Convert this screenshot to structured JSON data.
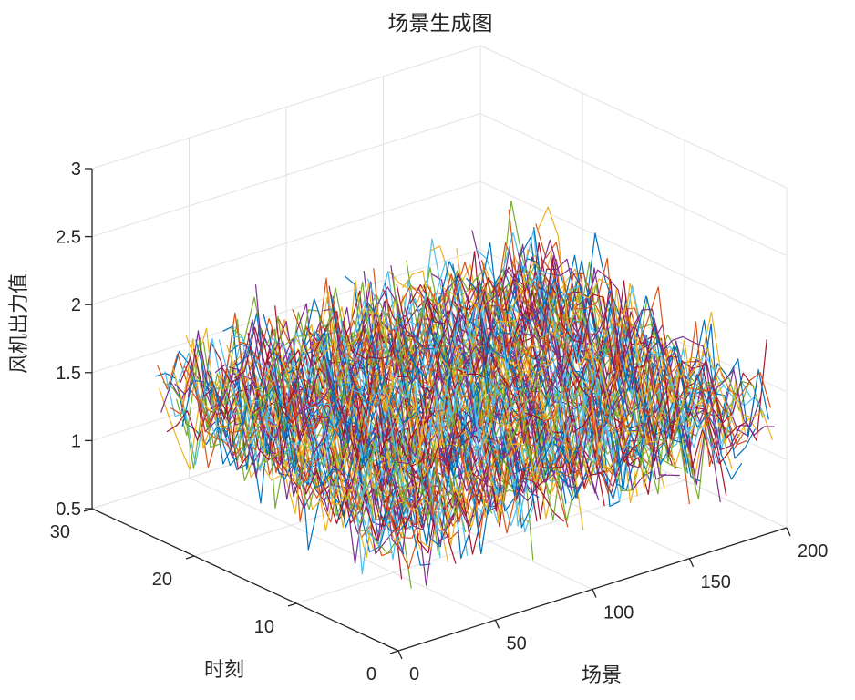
{
  "chart_data": {
    "type": "line",
    "projection": "3d",
    "title": "场景生成图",
    "xlabel": "场景",
    "ylabel": "时刻",
    "zlabel": "风机出力值",
    "xlim": [
      0,
      200
    ],
    "ylim": [
      0,
      30
    ],
    "zlim": [
      0.5,
      3
    ],
    "xticks": [
      "0",
      "50",
      "100",
      "150",
      "200"
    ],
    "yticks": [
      "0",
      "10",
      "20",
      "30"
    ],
    "zticks": [
      "0.5",
      "1",
      "1.5",
      "2",
      "2.5",
      "3"
    ],
    "grid": true,
    "num_scenarios": 200,
    "time_steps": 24,
    "value_range_approx": [
      0.7,
      2.6
    ],
    "mean_trend_approx": {
      "time_0": 1.3,
      "time_12": 1.45,
      "time_24": 1.6
    },
    "color_order": [
      "#0072BD",
      "#D95319",
      "#EDB120",
      "#7E2F8E",
      "#77AC30",
      "#4DBEEE",
      "#A2142F"
    ]
  }
}
